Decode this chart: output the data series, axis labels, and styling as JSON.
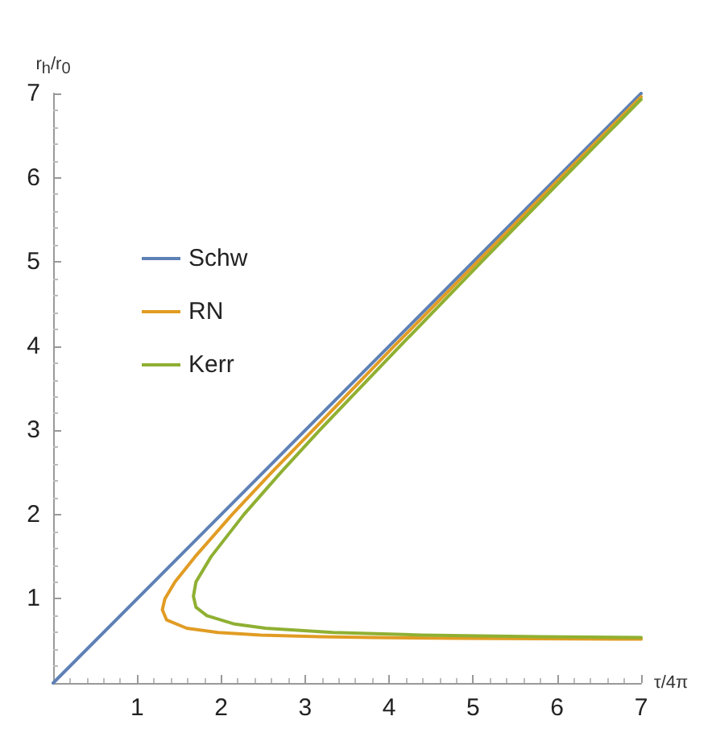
{
  "chart_data": {
    "type": "line",
    "xlabel": "τ/4π",
    "ylabel": "r$_{h}$/r$_{0}$",
    "xlim": [
      0,
      7
    ],
    "ylim": [
      0,
      7
    ],
    "xticks": [
      1,
      2,
      3,
      4,
      5,
      6,
      7
    ],
    "yticks": [
      1,
      2,
      3,
      4,
      5,
      6,
      7
    ],
    "grid": false,
    "legend": "left",
    "marker": "none",
    "line_style": "solid",
    "series": [
      {
        "name": "Schw",
        "color": "#5e81b5",
        "x": [
          0,
          7
        ],
        "values": [
          0,
          7
        ]
      },
      {
        "name": "RN",
        "color": "#e19c24",
        "x": [
          7.0,
          6.04,
          5.05,
          4.06,
          3.09,
          2.6,
          2.13,
          1.69,
          1.45,
          1.33,
          1.3,
          1.35,
          1.59,
          1.96,
          2.47,
          3.17,
          3.79,
          4.82,
          7.0
        ],
        "values": [
          6.96,
          6.0,
          5.0,
          4.0,
          3.0,
          2.5,
          2.0,
          1.5,
          1.2,
          1.0,
          0.87,
          0.75,
          0.65,
          0.6,
          0.57,
          0.55,
          0.54,
          0.53,
          0.52
        ]
      },
      {
        "name": "Kerr",
        "color": "#8fb032",
        "x": [
          7.0,
          6.08,
          5.1,
          4.13,
          3.17,
          2.71,
          2.27,
          1.88,
          1.7,
          1.67,
          1.7,
          1.83,
          2.16,
          2.53,
          3.33,
          4.38,
          5.79,
          7.0
        ],
        "values": [
          6.93,
          6.0,
          5.0,
          4.0,
          3.0,
          2.5,
          2.0,
          1.5,
          1.2,
          1.03,
          0.9,
          0.8,
          0.7,
          0.65,
          0.6,
          0.57,
          0.55,
          0.54
        ]
      }
    ]
  }
}
